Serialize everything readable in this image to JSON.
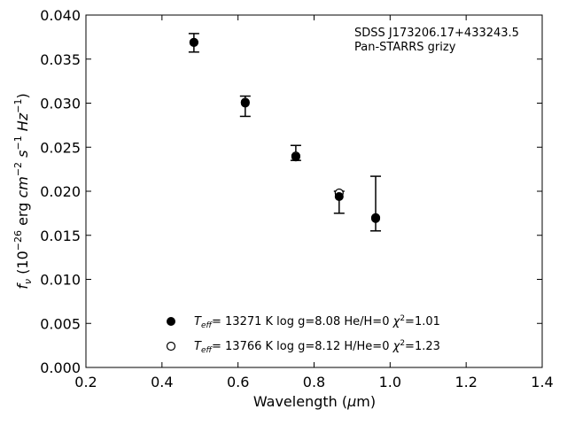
{
  "chart_data": {
    "type": "scatter",
    "title": "",
    "annotations": [
      "SDSS J173206.17+433243.5",
      "Pan-STARRS grizy"
    ],
    "xlabel": "Wavelength (μm)",
    "ylabel": "f_ν (10^-26 erg cm^-2 s^-1 Hz^-1)",
    "xlim": [
      0.2,
      1.4
    ],
    "ylim": [
      0.0,
      0.04
    ],
    "x_ticks": [
      "0.2",
      "0.4",
      "0.6",
      "0.8",
      "1.0",
      "1.2",
      "1.4"
    ],
    "y_ticks": [
      "0.000",
      "0.005",
      "0.010",
      "0.015",
      "0.020",
      "0.025",
      "0.030",
      "0.035",
      "0.040"
    ],
    "grid": false,
    "legend_position": "bottom-center",
    "observed": {
      "x": [
        0.484,
        0.619,
        0.752,
        0.866,
        0.962
      ],
      "y": [
        0.0368,
        0.0298,
        0.0239,
        0.0195,
        0.0168
      ],
      "y_low": [
        0.0358,
        0.0285,
        0.0235,
        0.0175,
        0.0155
      ],
      "y_high": [
        0.0379,
        0.0308,
        0.0252,
        0.02,
        0.0217
      ]
    },
    "series": [
      {
        "marker": "filled",
        "label": "T_eff= 13271 K  log g=8.08  He/H=0  χ²=1.01",
        "x": [
          0.484,
          0.619,
          0.752,
          0.866,
          0.962
        ],
        "y": [
          0.0369,
          0.03,
          0.0239,
          0.0194,
          0.0169
        ]
      },
      {
        "marker": "open",
        "label": "T_eff= 13766 K  log g=8.12  H/He=0  χ²=1.23",
        "x": [
          0.484,
          0.619,
          0.752,
          0.866,
          0.962
        ],
        "y": [
          0.0369,
          0.0301,
          0.024,
          0.0198,
          0.017
        ]
      }
    ],
    "legend": {
      "filled": {
        "teff": "13271",
        "logg": "8.08",
        "comp": "He/H=0",
        "chi2": "1.01"
      },
      "open": {
        "teff": "13766",
        "logg": "8.12",
        "comp": "H/He=0",
        "chi2": "1.23"
      }
    }
  }
}
